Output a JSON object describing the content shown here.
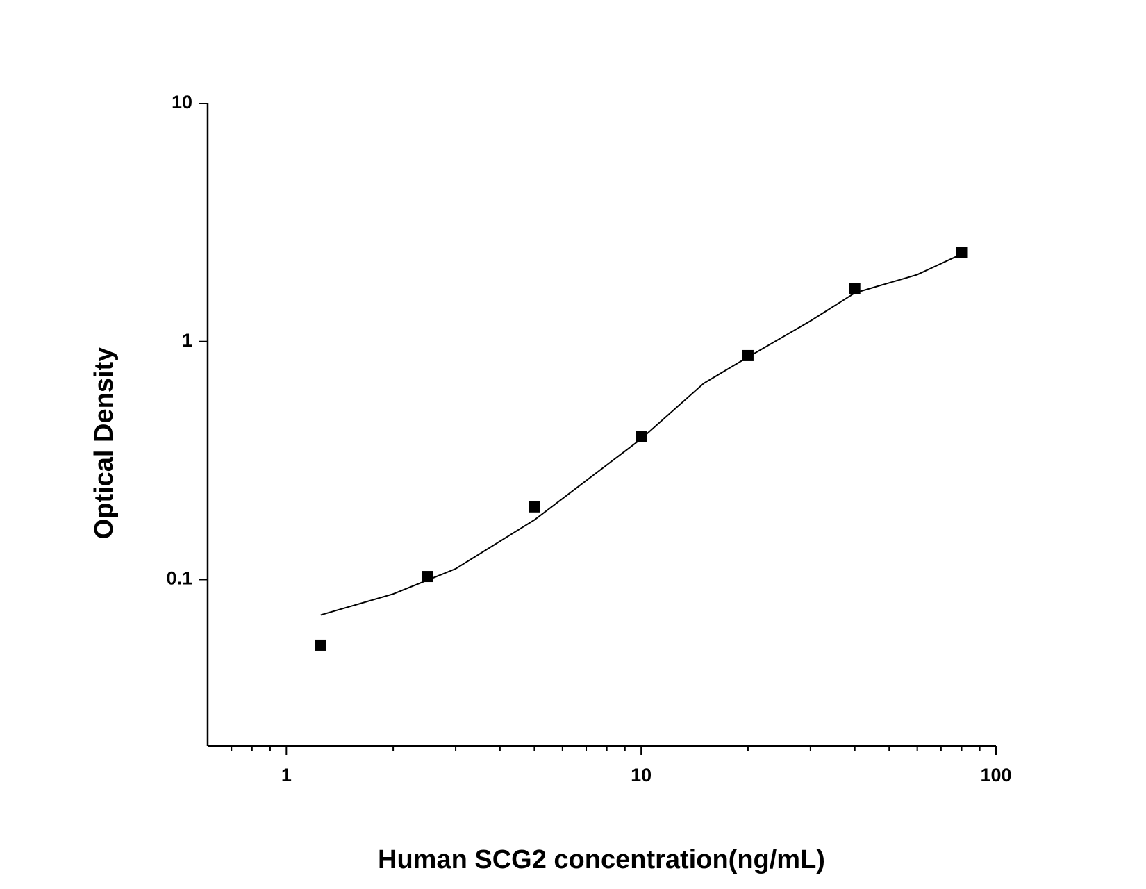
{
  "chart_data": {
    "type": "scatter",
    "x_label": "Human SCG2 concentration(ng/mL)",
    "y_label": "Optical Density",
    "xscale": "log",
    "yscale": "log",
    "xlim": [
      0.6,
      100
    ],
    "ylim": [
      0.02,
      10
    ],
    "xticks": [
      1,
      10,
      100
    ],
    "yticks": [
      0.1,
      1,
      10
    ],
    "xminor_ticks": [
      0.7,
      0.8,
      0.9,
      2,
      3,
      4,
      5,
      6,
      7,
      8,
      9,
      20,
      30,
      40,
      50,
      60,
      70,
      80,
      90
    ],
    "series": [
      {
        "color": "#000000",
        "marker": "square",
        "x": [
          1.25,
          2.5,
          5,
          10,
          20,
          40,
          80
        ],
        "values": [
          0.053,
          0.103,
          0.202,
          0.399,
          0.873,
          1.67,
          2.37
        ]
      },
      {
        "color": "#000000",
        "style": "line",
        "x": [
          1.25,
          2,
          3,
          5,
          10,
          15,
          20,
          30,
          40,
          60,
          80
        ],
        "values": [
          0.071,
          0.087,
          0.111,
          0.178,
          0.39,
          0.667,
          0.86,
          1.22,
          1.6,
          1.91,
          2.33
        ]
      }
    ]
  }
}
